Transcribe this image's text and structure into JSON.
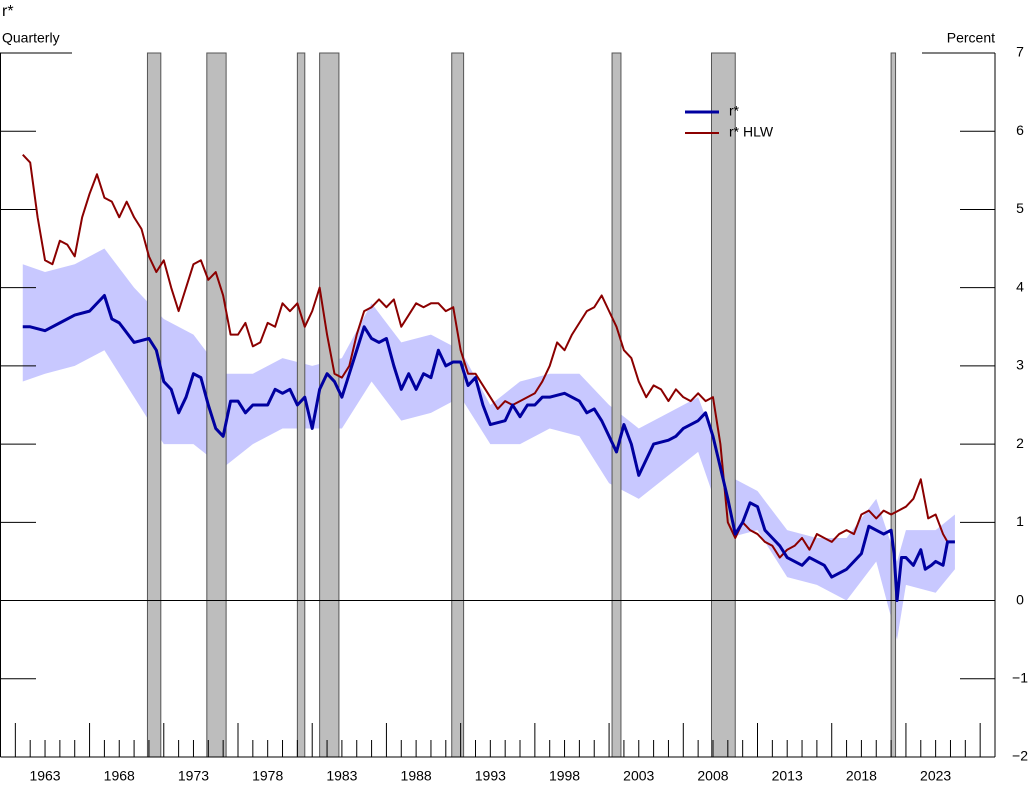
{
  "chart_data": {
    "type": "line",
    "title": "r*",
    "subtitle": "Quarterly",
    "y_label": "Percent",
    "xlim": [
      1960,
      2027
    ],
    "ylim": [
      -2,
      7
    ],
    "xticks": [
      1963,
      1968,
      1973,
      1978,
      1983,
      1988,
      1993,
      1998,
      2003,
      2008,
      2013,
      2018,
      2023
    ],
    "yticks": [
      {
        "value": -2,
        "label": "−2"
      },
      {
        "value": -1,
        "label": "−1"
      },
      0,
      1,
      2,
      3,
      4,
      5,
      6,
      7
    ],
    "legend": "upper right",
    "recessions": [
      [
        1969.9,
        1970.8
      ],
      [
        1973.9,
        1975.2
      ],
      [
        1980.0,
        1980.5
      ],
      [
        1981.5,
        1982.8
      ],
      [
        1990.4,
        1991.2
      ],
      [
        2001.2,
        2001.8
      ],
      [
        2007.9,
        2009.5
      ],
      [
        2020.0,
        2020.3
      ]
    ],
    "recession_color": "#bdbdbd",
    "band": {
      "color": "#c8c8ff",
      "x": [
        1961.5,
        1963,
        1965,
        1967,
        1969,
        1971,
        1973,
        1975,
        1977,
        1979,
        1981,
        1983,
        1985,
        1987,
        1989,
        1991,
        1993,
        1995,
        1997,
        1999,
        2001,
        2003,
        2005,
        2007,
        2009,
        2011,
        2013,
        2015,
        2017,
        2019,
        2020.4,
        2021,
        2023,
        2024.3
      ],
      "upper": [
        4.3,
        4.2,
        4.3,
        4.5,
        4.0,
        3.6,
        3.4,
        2.9,
        2.9,
        3.1,
        3.0,
        3.1,
        3.8,
        3.3,
        3.4,
        3.2,
        2.5,
        2.8,
        2.9,
        2.9,
        2.5,
        2.2,
        2.4,
        2.6,
        1.6,
        1.4,
        0.9,
        0.8,
        0.8,
        1.3,
        0.5,
        0.9,
        0.9,
        1.1
      ],
      "lower": [
        2.8,
        2.9,
        3.0,
        3.2,
        2.6,
        2.0,
        2.0,
        1.7,
        2.0,
        2.2,
        2.2,
        2.2,
        2.8,
        2.3,
        2.4,
        2.6,
        2.0,
        2.0,
        2.2,
        2.1,
        1.5,
        1.3,
        1.6,
        1.9,
        0.8,
        0.9,
        0.3,
        0.2,
        0.0,
        0.5,
        -0.5,
        0.2,
        0.1,
        0.4
      ]
    },
    "series": [
      {
        "name": "r*",
        "color": "#0000a0",
        "width": 3,
        "x": [
          1961.5,
          1962,
          1963,
          1964,
          1965,
          1966,
          1967,
          1967.5,
          1968,
          1969,
          1970,
          1970.5,
          1971,
          1971.5,
          1972,
          1972.5,
          1973,
          1973.5,
          1974,
          1974.5,
          1975,
          1975.5,
          1976,
          1976.5,
          1977,
          1978,
          1978.5,
          1979,
          1979.5,
          1980,
          1980.5,
          1981,
          1981.5,
          1982,
          1982.5,
          1983,
          1983.5,
          1984,
          1984.5,
          1985,
          1985.5,
          1986,
          1986.5,
          1987,
          1987.5,
          1988,
          1988.5,
          1989,
          1989.5,
          1990,
          1990.5,
          1991,
          1991.5,
          1992,
          1992.5,
          1993,
          1994,
          1994.5,
          1995,
          1995.5,
          1996,
          1996.5,
          1997,
          1998,
          1999,
          1999.5,
          2000,
          2000.5,
          2001,
          2001.5,
          2002,
          2002.5,
          2003,
          2003.5,
          2004,
          2005,
          2005.5,
          2006,
          2007,
          2007.5,
          2008,
          2008.5,
          2009,
          2009.5,
          2010,
          2010.5,
          2011,
          2011.5,
          2012,
          2012.5,
          2013,
          2014,
          2014.5,
          2015,
          2015.5,
          2016,
          2017,
          2018,
          2018.5,
          2019,
          2019.5,
          2020,
          2020.2,
          2020.4,
          2020.7,
          2021,
          2021.5,
          2022,
          2022.3,
          2022.7,
          2023,
          2023.5,
          2023.8,
          2024.3
        ],
        "values": [
          3.5,
          3.5,
          3.45,
          3.55,
          3.65,
          3.7,
          3.9,
          3.6,
          3.55,
          3.3,
          3.35,
          3.2,
          2.8,
          2.7,
          2.4,
          2.6,
          2.9,
          2.85,
          2.5,
          2.2,
          2.1,
          2.55,
          2.55,
          2.4,
          2.5,
          2.5,
          2.7,
          2.65,
          2.7,
          2.5,
          2.6,
          2.2,
          2.7,
          2.9,
          2.8,
          2.6,
          2.9,
          3.2,
          3.5,
          3.35,
          3.3,
          3.35,
          3.0,
          2.7,
          2.9,
          2.7,
          2.9,
          2.85,
          3.2,
          3.0,
          3.05,
          3.05,
          2.75,
          2.85,
          2.5,
          2.25,
          2.3,
          2.5,
          2.35,
          2.5,
          2.5,
          2.6,
          2.6,
          2.65,
          2.55,
          2.4,
          2.45,
          2.3,
          2.1,
          1.9,
          2.25,
          2.0,
          1.6,
          1.8,
          2.0,
          2.05,
          2.1,
          2.2,
          2.3,
          2.4,
          2.1,
          1.7,
          1.3,
          0.85,
          1.0,
          1.25,
          1.2,
          0.9,
          0.8,
          0.7,
          0.55,
          0.45,
          0.55,
          0.5,
          0.45,
          0.3,
          0.4,
          0.6,
          0.95,
          0.9,
          0.85,
          0.9,
          0.6,
          0.0,
          0.55,
          0.55,
          0.45,
          0.65,
          0.4,
          0.45,
          0.5,
          0.45,
          0.75,
          0.75
        ]
      },
      {
        "name": "r* HLW",
        "color": "#8b0000",
        "width": 2,
        "x": [
          1961.5,
          1962,
          1962.5,
          1963,
          1963.5,
          1964,
          1964.5,
          1965,
          1965.5,
          1966,
          1966.5,
          1967,
          1967.5,
          1968,
          1968.5,
          1969,
          1969.5,
          1970,
          1970.5,
          1971,
          1971.5,
          1972,
          1972.5,
          1973,
          1973.5,
          1974,
          1974.5,
          1975,
          1975.5,
          1976,
          1976.5,
          1977,
          1977.5,
          1978,
          1978.5,
          1979,
          1979.5,
          1980,
          1980.5,
          1981,
          1981.5,
          1982,
          1982.5,
          1983,
          1983.5,
          1984,
          1984.5,
          1985,
          1985.5,
          1986,
          1986.5,
          1987,
          1987.5,
          1988,
          1988.5,
          1989,
          1989.5,
          1990,
          1990.5,
          1991,
          1991.5,
          1992,
          1992.5,
          1993,
          1993.5,
          1994,
          1994.5,
          1995,
          1996,
          1996.5,
          1997,
          1997.5,
          1998,
          1998.5,
          1999,
          1999.5,
          2000,
          2000.5,
          2001,
          2001.5,
          2002,
          2002.5,
          2003,
          2003.5,
          2004,
          2004.5,
          2005,
          2005.5,
          2006,
          2006.5,
          2007,
          2007.5,
          2008,
          2008.5,
          2009,
          2009.5,
          2010,
          2010.5,
          2011,
          2011.5,
          2012,
          2012.5,
          2013,
          2013.5,
          2014,
          2014.5,
          2015,
          2015.5,
          2016,
          2016.5,
          2017,
          2017.5,
          2018,
          2018.5,
          2019,
          2019.5,
          2020,
          2020.5,
          2021,
          2021.5,
          2022,
          2022.5,
          2023,
          2023.5,
          2023.8
        ],
        "values": [
          5.7,
          5.6,
          4.9,
          4.35,
          4.3,
          4.6,
          4.55,
          4.4,
          4.9,
          5.2,
          5.45,
          5.15,
          5.1,
          4.9,
          5.1,
          4.9,
          4.75,
          4.4,
          4.2,
          4.35,
          4.0,
          3.7,
          4.0,
          4.3,
          4.35,
          4.1,
          4.2,
          3.9,
          3.4,
          3.4,
          3.55,
          3.25,
          3.3,
          3.55,
          3.5,
          3.8,
          3.7,
          3.8,
          3.5,
          3.7,
          4.0,
          3.4,
          2.9,
          2.85,
          3.0,
          3.4,
          3.7,
          3.75,
          3.85,
          3.75,
          3.85,
          3.5,
          3.65,
          3.8,
          3.75,
          3.8,
          3.8,
          3.7,
          3.75,
          3.2,
          2.9,
          2.9,
          2.75,
          2.6,
          2.45,
          2.55,
          2.5,
          2.55,
          2.65,
          2.8,
          3.0,
          3.3,
          3.2,
          3.4,
          3.55,
          3.7,
          3.75,
          3.9,
          3.7,
          3.5,
          3.2,
          3.1,
          2.8,
          2.6,
          2.75,
          2.7,
          2.55,
          2.7,
          2.6,
          2.55,
          2.65,
          2.55,
          2.6,
          2.0,
          1.0,
          0.8,
          1.0,
          0.9,
          0.85,
          0.75,
          0.7,
          0.55,
          0.65,
          0.7,
          0.8,
          0.65,
          0.85,
          0.8,
          0.75,
          0.85,
          0.9,
          0.85,
          1.1,
          1.15,
          1.05,
          1.15,
          1.1,
          1.15,
          1.2,
          1.3,
          1.55,
          1.05,
          1.1,
          0.85,
          0.75
        ]
      }
    ]
  }
}
